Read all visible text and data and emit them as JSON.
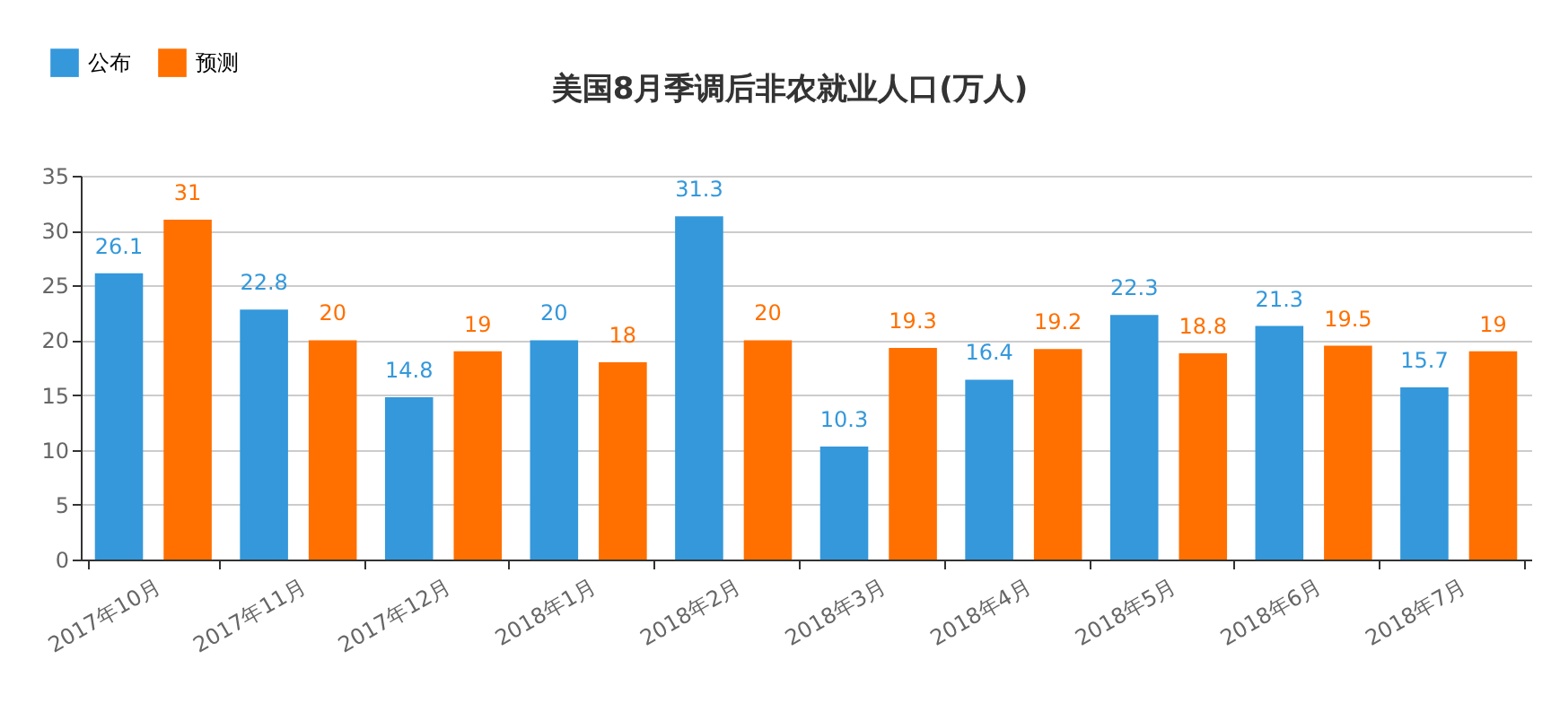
{
  "chart_data": {
    "type": "bar",
    "title": "美国8月季调后非农就业人口(万人)",
    "categories": [
      "2017年10月",
      "2017年11月",
      "2017年12月",
      "2018年1月",
      "2018年2月",
      "2018年3月",
      "2018年4月",
      "2018年5月",
      "2018年6月",
      "2018年7月"
    ],
    "series": [
      {
        "name": "公布",
        "color": "#3498db",
        "values": [
          26.1,
          22.8,
          14.8,
          20,
          31.3,
          10.3,
          16.4,
          22.3,
          21.3,
          15.7
        ]
      },
      {
        "name": "预测",
        "color": "#ff7000",
        "values": [
          31,
          20,
          19,
          18,
          20,
          19.3,
          19.2,
          18.8,
          19.5,
          19
        ]
      }
    ],
    "ylim": [
      0,
      35
    ],
    "yticks": [
      0,
      5,
      10,
      15,
      20,
      25,
      30,
      35
    ],
    "grid": "y",
    "legend": "top left",
    "data_labels": true
  }
}
